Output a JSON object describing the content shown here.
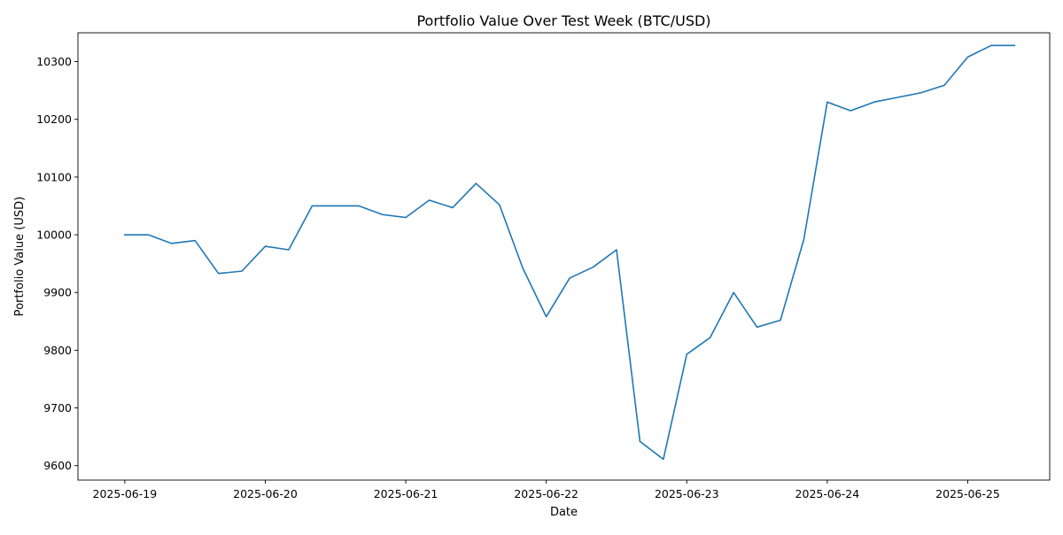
{
  "chart_data": {
    "type": "line",
    "title": "Portfolio Value Over Test Week (BTC/USD)",
    "xlabel": "Date",
    "ylabel": "Portfolio Value (USD)",
    "xlim": [
      "2025-06-18T16:00",
      "2025-06-25T14:00"
    ],
    "ylim": [
      9575,
      10350
    ],
    "x_ticks": [
      "2025-06-19",
      "2025-06-20",
      "2025-06-21",
      "2025-06-22",
      "2025-06-23",
      "2025-06-24",
      "2025-06-25"
    ],
    "y_ticks": [
      9600,
      9700,
      9800,
      9900,
      10000,
      10100,
      10200,
      10300
    ],
    "grid": false,
    "legend": false,
    "line_color": "#1f77b4",
    "series": [
      {
        "x": [
          "2025-06-19T00:00",
          "2025-06-19T04:00",
          "2025-06-19T08:00",
          "2025-06-19T12:00",
          "2025-06-19T16:00",
          "2025-06-19T20:00",
          "2025-06-20T00:00",
          "2025-06-20T04:00",
          "2025-06-20T08:00",
          "2025-06-20T12:00",
          "2025-06-20T16:00",
          "2025-06-20T20:00",
          "2025-06-21T00:00",
          "2025-06-21T04:00",
          "2025-06-21T08:00",
          "2025-06-21T12:00",
          "2025-06-21T16:00",
          "2025-06-21T20:00",
          "2025-06-22T00:00",
          "2025-06-22T04:00",
          "2025-06-22T08:00",
          "2025-06-22T12:00",
          "2025-06-22T16:00",
          "2025-06-22T20:00",
          "2025-06-23T00:00",
          "2025-06-23T04:00",
          "2025-06-23T08:00",
          "2025-06-23T12:00",
          "2025-06-23T16:00",
          "2025-06-23T20:00",
          "2025-06-24T00:00",
          "2025-06-24T04:00",
          "2025-06-24T08:00",
          "2025-06-24T12:00",
          "2025-06-24T16:00",
          "2025-06-24T20:00",
          "2025-06-25T00:00",
          "2025-06-25T04:00",
          "2025-06-25T08:00"
        ],
        "y": [
          10000,
          10000,
          9985,
          9990,
          9933,
          9937,
          9980,
          9974,
          10050,
          10050,
          10050,
          10035,
          10030,
          10060,
          10047,
          10089,
          10052,
          9942,
          9858,
          9925,
          9944,
          9974,
          9642,
          9611,
          9793,
          9822,
          9900,
          9840,
          9852,
          9992,
          10230,
          10215,
          10230,
          10238,
          10246,
          10259,
          10308,
          10328,
          10328
        ]
      }
    ]
  }
}
